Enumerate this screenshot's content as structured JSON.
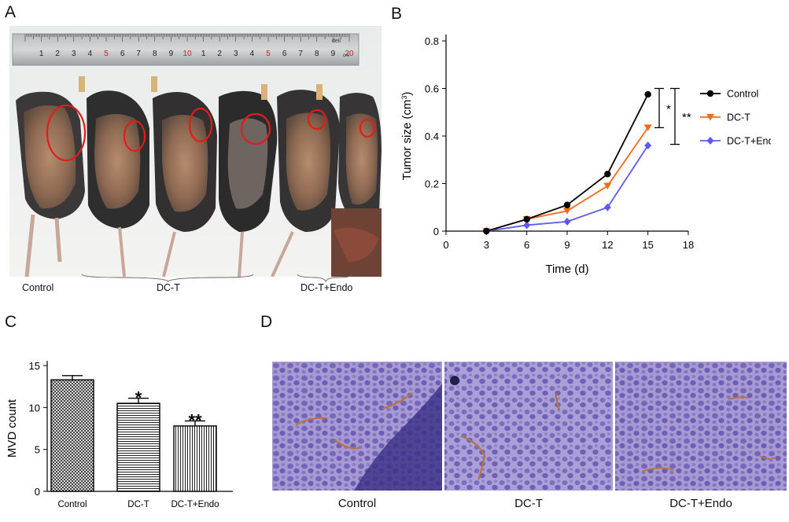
{
  "panels": {
    "a": {
      "letter": "A",
      "ruler_brand": "deli",
      "ruler_labels": [
        "1",
        "2",
        "3",
        "4",
        "5",
        "6",
        "7",
        "8",
        "9",
        "10",
        "1",
        "2",
        "3",
        "4",
        "5",
        "6",
        "7",
        "8",
        "9",
        "20"
      ],
      "ruler_unit": "cm",
      "captions": [
        "Control",
        "DC-T",
        "DC-T+Endo"
      ]
    },
    "b": {
      "letter": "B"
    },
    "c": {
      "letter": "C"
    },
    "d": {
      "letter": "D",
      "captions": [
        "Control",
        "DC-T",
        "DC-T+Endo"
      ]
    }
  },
  "chart_data": [
    {
      "type": "line",
      "panel": "B",
      "xlabel": "Time (d)",
      "ylabel": "Tumor size (cm",
      "ylabel_sup": "3",
      "ylabel_close": ")",
      "xlim": [
        0,
        18
      ],
      "ylim": [
        0,
        0.8
      ],
      "xticks": [
        0,
        3,
        6,
        9,
        12,
        15,
        18
      ],
      "yticks": [
        0,
        0.2,
        0.4,
        0.6,
        0.8
      ],
      "xtick_labels": [
        "0",
        "3",
        "6",
        "9",
        "12",
        "15",
        "18"
      ],
      "ytick_labels": [
        "0",
        "0.2",
        "0.4",
        "0.6",
        "0.8"
      ],
      "x": [
        3,
        6,
        9,
        12,
        15
      ],
      "series": [
        {
          "name": "Control",
          "values": [
            0.0,
            0.05,
            0.11,
            0.24,
            0.575
          ],
          "color": "#000000",
          "marker": "circle"
        },
        {
          "name": "DC-T",
          "values": [
            0.0,
            0.05,
            0.085,
            0.19,
            0.435
          ],
          "color": "#f26b1d",
          "marker": "triangle-down"
        },
        {
          "name": "DC-T+Endo",
          "values": [
            0.0,
            0.025,
            0.04,
            0.1,
            0.36
          ],
          "color": "#5b5bf0",
          "marker": "diamond"
        }
      ],
      "legend_position": "right",
      "significance": [
        {
          "label": "*",
          "from": 0.6,
          "to": 0.435
        },
        {
          "label": "**",
          "from": 0.6,
          "to": 0.365
        }
      ]
    },
    {
      "type": "bar",
      "panel": "C",
      "ylabel": "MVD count",
      "categories": [
        "Control",
        "DC-T",
        "DC-T+Endo"
      ],
      "values": [
        13.3,
        10.5,
        7.8
      ],
      "errors": [
        0.5,
        0.6,
        0.6
      ],
      "significance": [
        "",
        "*",
        "**"
      ],
      "patterns": [
        "crosshatch",
        "horizontal",
        "vertical"
      ],
      "ylim": [
        0,
        15
      ],
      "yticks": [
        0,
        5,
        10,
        15
      ],
      "ytick_labels": [
        "0",
        "5",
        "10",
        "15"
      ]
    }
  ]
}
